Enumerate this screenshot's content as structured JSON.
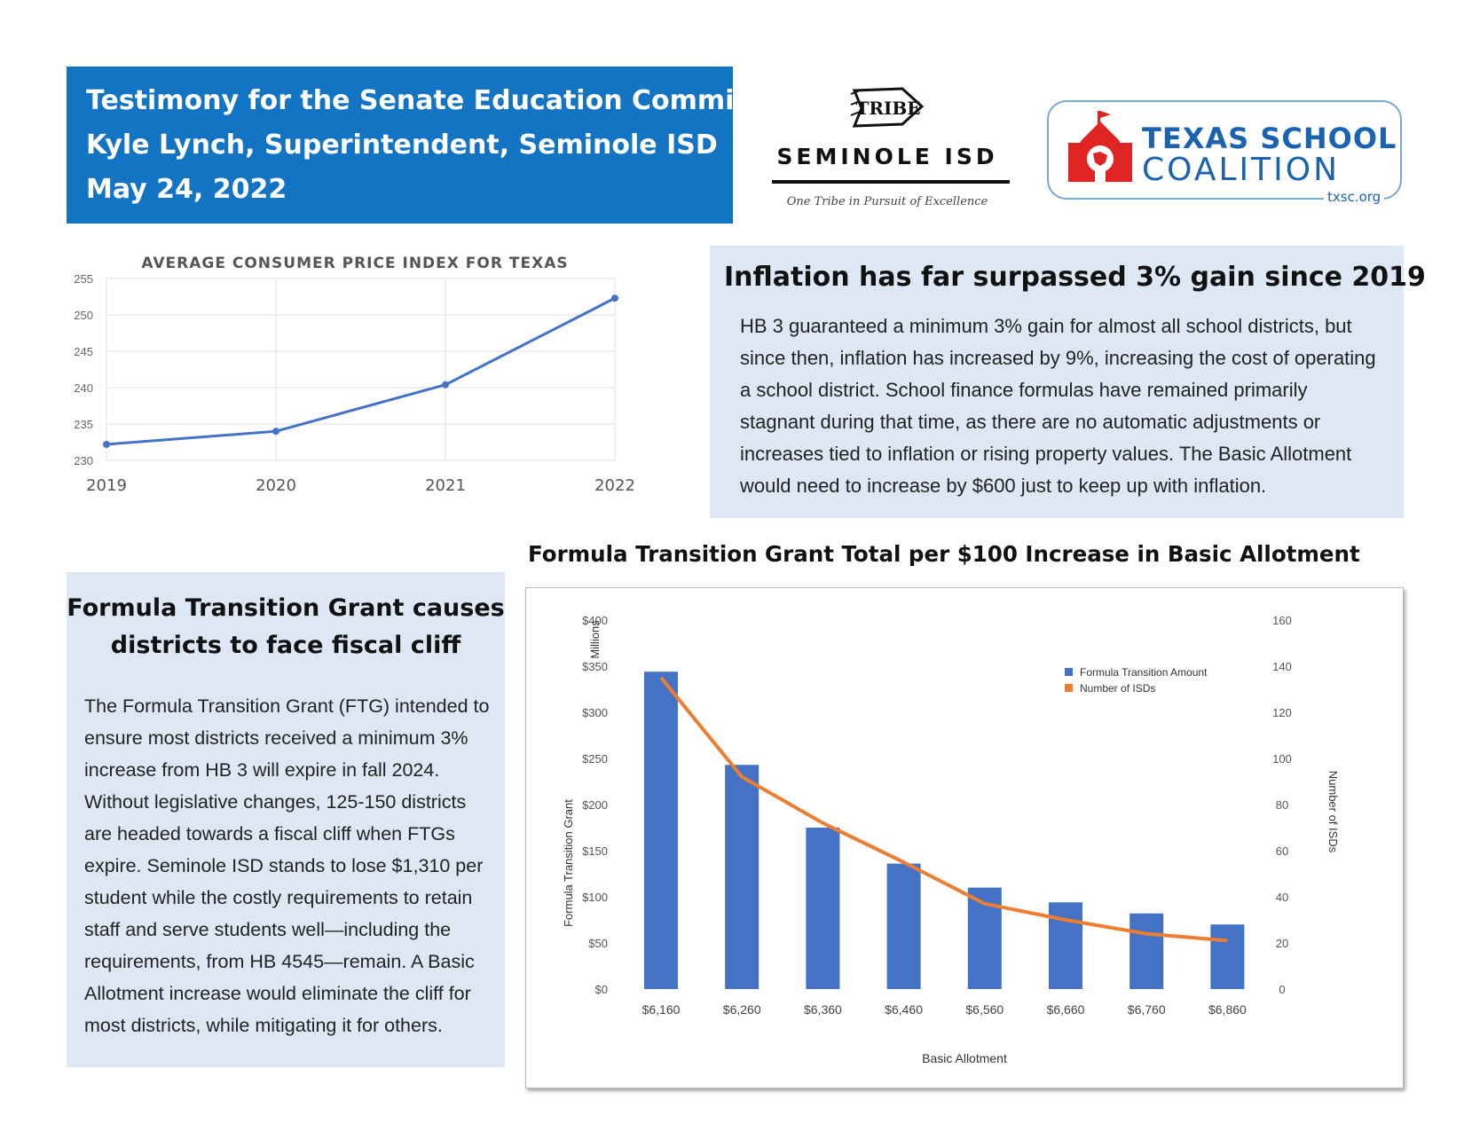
{
  "header": {
    "line1": "Testimony for the Senate Education Committee",
    "line2": "Kyle Lynch, Superintendent, Seminole ISD",
    "line3": "May 24, 2022",
    "background": "#1474c4"
  },
  "seminole_logo": {
    "emblem_text": "TRIBE",
    "name": "SEMINOLE ISD",
    "motto": "One Tribe in Pursuit of Excellence",
    "icon": "arrowhead-icon"
  },
  "tsc_logo": {
    "line1": "TEXAS SCHOOL",
    "line2": "COALITION",
    "url": "txsc.org",
    "icon": "schoolhouse-icon",
    "colors": {
      "red": "#e02424",
      "blue": "#1b63b0"
    }
  },
  "inflation": {
    "heading": "Inflation has far surpassed 3% gain since 2019",
    "body": "HB 3 guaranteed a minimum 3% gain for almost all school districts, but since then, inflation has increased by 9%, increasing the cost of operating a school district. School finance formulas have remained primarily stagnant during that time, as there are no automatic adjustments or increases tied to inflation or rising property values.  The Basic Allotment would need to increase by $600 just to keep up with inflation."
  },
  "ftg_section": {
    "heading_line1": "Formula Transition Grant causes",
    "heading_line2": "districts to face fiscal cliff",
    "body": "The Formula Transition Grant (FTG) intended to ensure most districts received a minimum 3% increase from HB 3 will expire in  fall 2024. Without legislative changes, 125-150 districts are headed towards a fiscal cliff when FTGs expire. Seminole ISD stands to lose $1,310 per student while the costly requirements to retain staff and serve students well—including the requirements, from HB 4545—remain.  A Basic Allotment increase would eliminate the cliff for most districts, while mitigating it for others."
  },
  "chart_data": [
    {
      "type": "line",
      "title": "AVERAGE CONSUMER PRICE INDEX FOR TEXAS",
      "categories": [
        "2019",
        "2020",
        "2021",
        "2022"
      ],
      "values": [
        232.2,
        234.0,
        240.4,
        252.3
      ],
      "yticks": [
        "255",
        "250",
        "245",
        "240",
        "235",
        "230"
      ],
      "ylim": [
        230,
        255
      ],
      "grid": true,
      "color": "#4472c4"
    },
    {
      "type": "bar",
      "title": "Formula Transition Grant Total per $100 Increase in Basic Allotment",
      "xlabel": "Basic Allotment",
      "ylabel": "Formula Transition Grant",
      "ylabel_unit": "Millions",
      "y2label": "Number of ISDs",
      "categories": [
        "$6,160",
        "$6,260",
        "$6,360",
        "$6,460",
        "$6,560",
        "$6,660",
        "$6,760",
        "$6,860"
      ],
      "series": [
        {
          "name": "Formula Transition Amount",
          "type": "bar",
          "axis": "left",
          "color": "#4472c4",
          "values": [
            344,
            243,
            175,
            136,
            110,
            94,
            82,
            70
          ]
        },
        {
          "name": "Number of ISDs",
          "type": "line",
          "axis": "right",
          "color": "#ed7d31",
          "values": [
            135,
            92,
            72,
            55,
            37,
            30,
            24,
            21
          ]
        }
      ],
      "ylim": [
        0,
        400
      ],
      "y2lim": [
        0,
        160
      ],
      "yticks": [
        "$400",
        "$350",
        "$300",
        "$250",
        "$200",
        "$150",
        "$100",
        "$50",
        "$0"
      ],
      "y2ticks": [
        "160",
        "140",
        "120",
        "100",
        "80",
        "60",
        "40",
        "20",
        "0"
      ],
      "legend_position": "top-right"
    }
  ]
}
